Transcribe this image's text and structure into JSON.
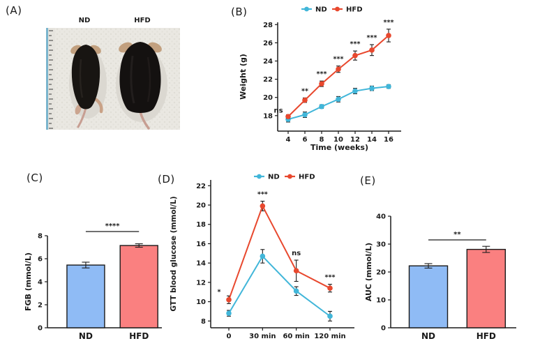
{
  "figure": {
    "panel_labels": {
      "a": "(A)",
      "b": "(B)",
      "c": "(C)",
      "d": "(D)",
      "e": "(E)"
    },
    "photo": {
      "left_label": "ND",
      "right_label": "HFD"
    }
  },
  "colors": {
    "nd_marker": "#41b6d9",
    "hfd_marker": "#e8482e",
    "nd_bar": "#8fbbf5",
    "hfd_bar": "#fa8080"
  },
  "chart_data": [
    {
      "panel": "B",
      "type": "line",
      "title": "",
      "xlabel": "Time (weeks)",
      "ylabel": "Weight (g)",
      "categories": [
        "4",
        "6",
        "8",
        "10",
        "12",
        "14",
        "16"
      ],
      "ylim": [
        16.3,
        28.25
      ],
      "yticks": [
        18,
        20,
        22,
        24,
        26,
        28
      ],
      "legend_position": "top",
      "series": [
        {
          "name": "ND",
          "color": "#41b6d9",
          "values": [
            17.6,
            18.1,
            19.0,
            19.8,
            20.7,
            21.0,
            21.2
          ],
          "errors": [
            0.3,
            0.3,
            0.2,
            0.3,
            0.3,
            0.25,
            0.2
          ]
        },
        {
          "name": "HFD",
          "color": "#e8482e",
          "values": [
            17.9,
            19.7,
            21.5,
            23.1,
            24.6,
            25.2,
            26.8
          ],
          "errors": [
            0.2,
            0.25,
            0.3,
            0.35,
            0.5,
            0.6,
            0.7
          ]
        }
      ],
      "annotations": [
        "ns",
        "**",
        "***",
        "***",
        "***",
        "***",
        "***"
      ]
    },
    {
      "panel": "C",
      "type": "bar",
      "title": "",
      "xlabel": "",
      "ylabel": "FGB (mmol/L)",
      "categories": [
        "ND",
        "HFD"
      ],
      "values": [
        5.45,
        7.15
      ],
      "errors": [
        0.25,
        0.15
      ],
      "colors": [
        "#8fbbf5",
        "#fa8080"
      ],
      "ylim": [
        0,
        8
      ],
      "yticks": [
        0,
        2,
        4,
        6,
        8
      ],
      "significance": "****"
    },
    {
      "panel": "D",
      "type": "line",
      "title": "",
      "xlabel": "",
      "ylabel": "GTT blood glucose (mmol/L)",
      "categories": [
        "0",
        "30 min",
        "60 min",
        "120 min"
      ],
      "ylim": [
        7.3,
        22.6
      ],
      "yticks": [
        8,
        10,
        12,
        14,
        16,
        18,
        20,
        22
      ],
      "legend_position": "top",
      "series": [
        {
          "name": "ND",
          "color": "#41b6d9",
          "values": [
            8.8,
            14.7,
            11.1,
            8.5
          ],
          "errors": [
            0.3,
            0.7,
            0.45,
            0.5
          ]
        },
        {
          "name": "HFD",
          "color": "#e8482e",
          "values": [
            10.2,
            19.9,
            13.2,
            11.4
          ],
          "errors": [
            0.4,
            0.5,
            1.1,
            0.4
          ]
        }
      ],
      "annotations": [
        "*",
        "***",
        "ns",
        "***"
      ]
    },
    {
      "panel": "E",
      "type": "bar",
      "title": "",
      "xlabel": "",
      "ylabel": "AUC (mmol/L)",
      "categories": [
        "ND",
        "HFD"
      ],
      "values": [
        22.2,
        28.1
      ],
      "errors": [
        0.8,
        1.1
      ],
      "colors": [
        "#8fbbf5",
        "#fa8080"
      ],
      "ylim": [
        0,
        43
      ],
      "yticks": [
        0,
        10,
        20,
        30,
        40
      ],
      "significance": "**"
    }
  ]
}
